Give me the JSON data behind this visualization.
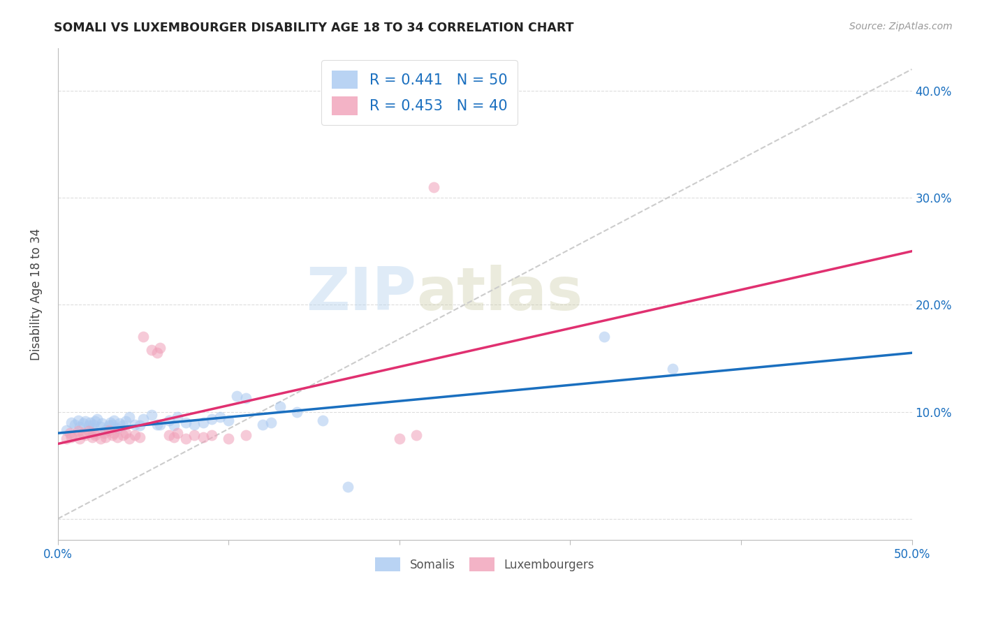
{
  "title": "SOMALI VS LUXEMBOURGER DISABILITY AGE 18 TO 34 CORRELATION CHART",
  "source": "Source: ZipAtlas.com",
  "ylabel": "Disability Age 18 to 34",
  "xlim": [
    0.0,
    0.5
  ],
  "ylim": [
    -0.02,
    0.44
  ],
  "yticks": [
    0.0,
    0.1,
    0.2,
    0.3,
    0.4
  ],
  "ytick_labels": [
    "",
    "10.0%",
    "20.0%",
    "30.0%",
    "40.0%"
  ],
  "xticks": [
    0.0,
    0.1,
    0.2,
    0.3,
    0.4,
    0.5
  ],
  "xtick_labels": [
    "0.0%",
    "",
    "",
    "",
    "",
    "50.0%"
  ],
  "somali_color": "#A8C8F0",
  "luxembourger_color": "#F0A0B8",
  "somali_line_color": "#1A6FBF",
  "luxembourger_line_color": "#E03070",
  "dashed_line_color": "#CCCCCC",
  "R_somali": 0.441,
  "N_somali": 50,
  "R_luxembourger": 0.453,
  "N_luxembourger": 40,
  "legend_label_somali": "Somalis",
  "legend_label_luxembourger": "Luxembourgers",
  "watermark_zip": "ZIP",
  "watermark_atlas": "atlas",
  "somali_x": [
    0.005,
    0.008,
    0.01,
    0.012,
    0.013,
    0.015,
    0.016,
    0.018,
    0.019,
    0.02,
    0.021,
    0.022,
    0.023,
    0.025,
    0.026,
    0.028,
    0.03,
    0.031,
    0.032,
    0.033,
    0.035,
    0.036,
    0.038,
    0.04,
    0.042,
    0.045,
    0.048,
    0.05,
    0.055,
    0.058,
    0.06,
    0.065,
    0.068,
    0.07,
    0.075,
    0.08,
    0.085,
    0.09,
    0.095,
    0.1,
    0.105,
    0.11,
    0.12,
    0.125,
    0.13,
    0.14,
    0.155,
    0.17,
    0.32,
    0.36
  ],
  "somali_y": [
    0.083,
    0.09,
    0.088,
    0.092,
    0.086,
    0.089,
    0.091,
    0.087,
    0.09,
    0.085,
    0.088,
    0.091,
    0.093,
    0.086,
    0.089,
    0.083,
    0.087,
    0.09,
    0.088,
    0.092,
    0.085,
    0.089,
    0.087,
    0.091,
    0.095,
    0.088,
    0.087,
    0.093,
    0.097,
    0.088,
    0.088,
    0.092,
    0.087,
    0.095,
    0.09,
    0.088,
    0.09,
    0.093,
    0.095,
    0.092,
    0.115,
    0.113,
    0.088,
    0.09,
    0.105,
    0.1,
    0.092,
    0.03,
    0.17,
    0.14
  ],
  "luxembourger_x": [
    0.005,
    0.007,
    0.008,
    0.01,
    0.012,
    0.013,
    0.015,
    0.016,
    0.018,
    0.02,
    0.021,
    0.022,
    0.025,
    0.027,
    0.028,
    0.03,
    0.032,
    0.033,
    0.035,
    0.038,
    0.04,
    0.042,
    0.045,
    0.048,
    0.05,
    0.055,
    0.058,
    0.06,
    0.065,
    0.068,
    0.07,
    0.075,
    0.08,
    0.085,
    0.09,
    0.1,
    0.11,
    0.2,
    0.21,
    0.22
  ],
  "luxembourger_y": [
    0.075,
    0.08,
    0.076,
    0.078,
    0.082,
    0.075,
    0.08,
    0.078,
    0.082,
    0.076,
    0.08,
    0.078,
    0.075,
    0.08,
    0.076,
    0.083,
    0.078,
    0.08,
    0.076,
    0.078,
    0.08,
    0.075,
    0.078,
    0.076,
    0.17,
    0.158,
    0.155,
    0.16,
    0.078,
    0.076,
    0.08,
    0.075,
    0.078,
    0.076,
    0.078,
    0.075,
    0.078,
    0.075,
    0.078,
    0.31
  ],
  "somali_line_x": [
    0.0,
    0.5
  ],
  "somali_line_y": [
    0.08,
    0.155
  ],
  "luxembourger_line_x": [
    0.0,
    0.5
  ],
  "luxembourger_line_y": [
    0.07,
    0.25
  ],
  "diag_line_x": [
    0.0,
    0.5
  ],
  "diag_line_y": [
    0.0,
    0.42
  ]
}
